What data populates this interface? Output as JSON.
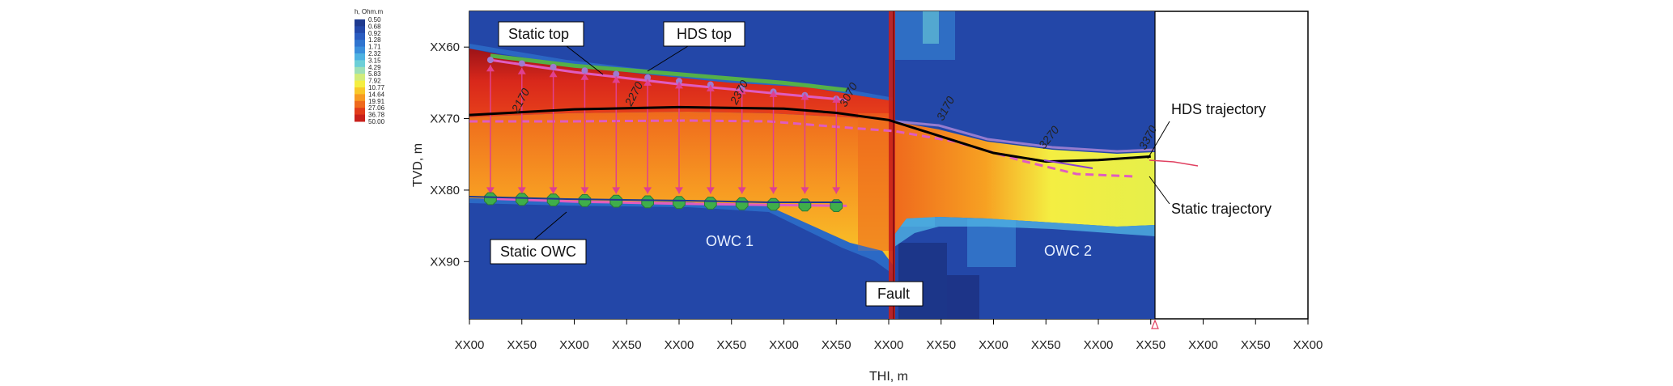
{
  "chart_data": {
    "type": "heatmap",
    "title": "",
    "xlabel": "THI, m",
    "ylabel": "TVD, m",
    "x_tick_labels": [
      "XX00",
      "XX50",
      "XX00",
      "XX50",
      "XX00",
      "XX50",
      "XX00",
      "XX50",
      "XX00",
      "XX50",
      "XX00",
      "XX50",
      "XX00",
      "XX50",
      "XX00",
      "XX50",
      "XX00"
    ],
    "y_tick_labels": [
      "XX60",
      "XX70",
      "XX80",
      "XX90"
    ],
    "x_range": [
      0,
      800
    ],
    "y_range": [
      55,
      98
    ],
    "legend": {
      "title": "h, Ohm.m",
      "values": [
        "0.50",
        "0.68",
        "0.92",
        "1.28",
        "1.71",
        "2.32",
        "3.15",
        "4.29",
        "5.83",
        "7.92",
        "10.77",
        "14.64",
        "19.91",
        "27.06",
        "36.78",
        "50.00"
      ],
      "colors": [
        "#1f3a8f",
        "#2347a8",
        "#2a5cc0",
        "#2f74cf",
        "#3a8edb",
        "#4fb2e2",
        "#6ccfd8",
        "#9ee0b6",
        "#d2ec7a",
        "#f4ee42",
        "#f9c829",
        "#f79a22",
        "#ef6a1d",
        "#e23b1a",
        "#c8201b",
        "#9c1318"
      ]
    },
    "annotations": [
      {
        "text": "Static top"
      },
      {
        "text": "HDS top"
      },
      {
        "text": "HDS trajectory"
      },
      {
        "text": "Static trajectory"
      },
      {
        "text": "Static OWC"
      },
      {
        "text": "OWC 1"
      },
      {
        "text": "OWC 2"
      },
      {
        "text": "Fault"
      }
    ],
    "md_labels": [
      "2170",
      "2270",
      "2370",
      "3070",
      "3170",
      "3270",
      "3370"
    ],
    "series": [
      {
        "name": "HDS trajectory",
        "color": "#000000",
        "x": [
          0,
          100,
          200,
          300,
          350,
          400,
          450,
          500,
          550,
          600,
          650
        ],
        "y": [
          69.5,
          68.7,
          68.4,
          68.6,
          69.2,
          70.2,
          72.5,
          74.8,
          76.0,
          75.8,
          75.3
        ]
      },
      {
        "name": "Static trajectory",
        "color": "#e04060",
        "x": [
          650,
          700
        ],
        "y": [
          75.3,
          76.0
        ]
      },
      {
        "name": "Static top",
        "color": "#e05cc0",
        "x": [
          20,
          100,
          200,
          300,
          360
        ],
        "y": [
          61.8,
          63.5,
          65.2,
          66.6,
          67.4
        ]
      },
      {
        "name": "HDS top",
        "color": "#55b048",
        "x": [
          20,
          100,
          200,
          300,
          360
        ],
        "y": [
          61.2,
          62.6,
          63.8,
          65.0,
          66.0
        ]
      },
      {
        "name": "Static OWC",
        "color": "#e05cc0",
        "x": [
          20,
          100,
          200,
          300,
          360
        ],
        "y": [
          81.2,
          81.6,
          81.9,
          82.1,
          82.2
        ]
      }
    ],
    "grid": false
  }
}
